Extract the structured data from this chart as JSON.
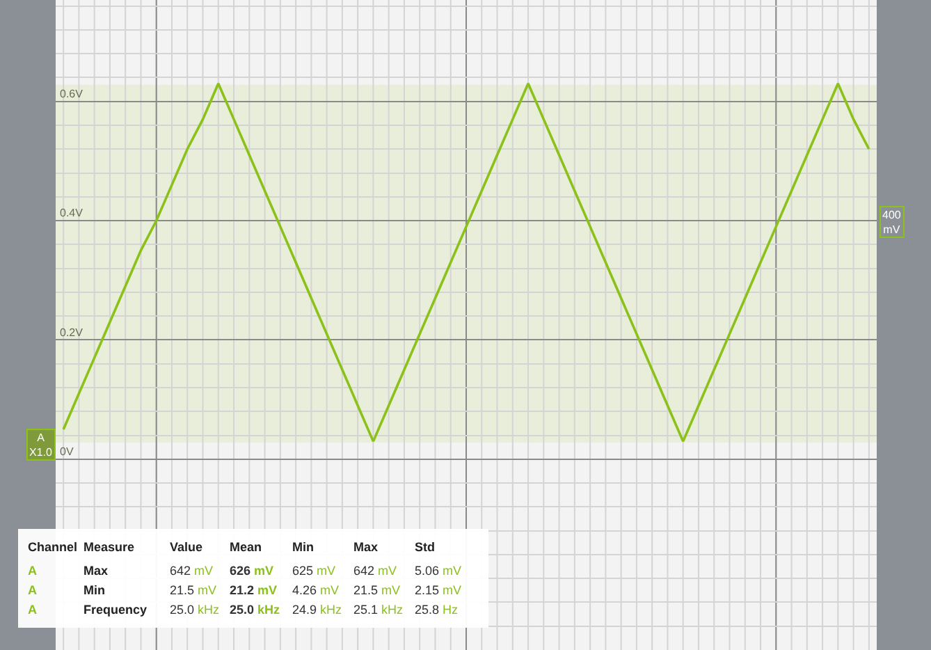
{
  "chart_data": {
    "type": "line",
    "categories": [
      null,
      null,
      null,
      null,
      null,
      null,
      null,
      null,
      null,
      null,
      null,
      null,
      null,
      null,
      null,
      null,
      null,
      null,
      null,
      null,
      null,
      null,
      null,
      null,
      null,
      null,
      null,
      null,
      null,
      null,
      null,
      null,
      null,
      null,
      null,
      null,
      null,
      null,
      null,
      null,
      null,
      null,
      null,
      null,
      null,
      null,
      null,
      null,
      null,
      null,
      null,
      null,
      null
    ],
    "series": [
      {
        "color": "#8cc11a",
        "values": [
          0.05,
          0.11,
          0.17,
          0.23,
          0.29,
          0.35,
          0.4,
          0.46,
          0.52,
          0.57,
          0.63,
          0.57,
          0.51,
          0.45,
          0.39,
          0.33,
          0.27,
          0.21,
          0.15,
          0.09,
          0.03,
          0.09,
          0.15,
          0.21,
          0.27,
          0.33,
          0.39,
          0.45,
          0.51,
          0.57,
          0.63,
          0.57,
          0.51,
          0.45,
          0.39,
          0.33,
          0.27,
          0.21,
          0.15,
          0.09,
          0.03,
          0.09,
          0.15,
          0.21,
          0.27,
          0.33,
          0.39,
          0.45,
          0.51,
          0.57,
          0.63,
          0.57,
          0.52
        ]
      }
    ],
    "ylim": [
      -0.32,
      0.77
    ],
    "yticks": [
      {
        "value": 0,
        "label": "0V"
      },
      {
        "value": 0.2,
        "label": "0.2V"
      },
      {
        "value": 0.4,
        "label": "0.4V"
      },
      {
        "value": 0.6,
        "label": "0.6V"
      }
    ],
    "bands": [
      {
        "axis": "y",
        "from": 0.028,
        "to": 0.628,
        "color": "#e8eed9"
      }
    ],
    "grid": true,
    "marker": "none",
    "line_style": "solid",
    "annotations": [
      "A\nX1.0",
      "400\nmV",
      "Channel",
      "Measure",
      "Value",
      "Mean",
      "Min",
      "Max",
      "Std",
      "A",
      "Max",
      "642 mV",
      "626 mV",
      "625 mV",
      "642 mV",
      "5.06 mV",
      "A",
      "Min",
      "21.5 mV",
      "21.2 mV",
      "4.26 mV",
      "21.5 mV",
      "2.15 mV",
      "A",
      "Frequency",
      "25.0 kHz",
      "25.0 kHz",
      "24.9 kHz",
      "25.1 kHz",
      "25.8 Hz"
    ]
  }
}
